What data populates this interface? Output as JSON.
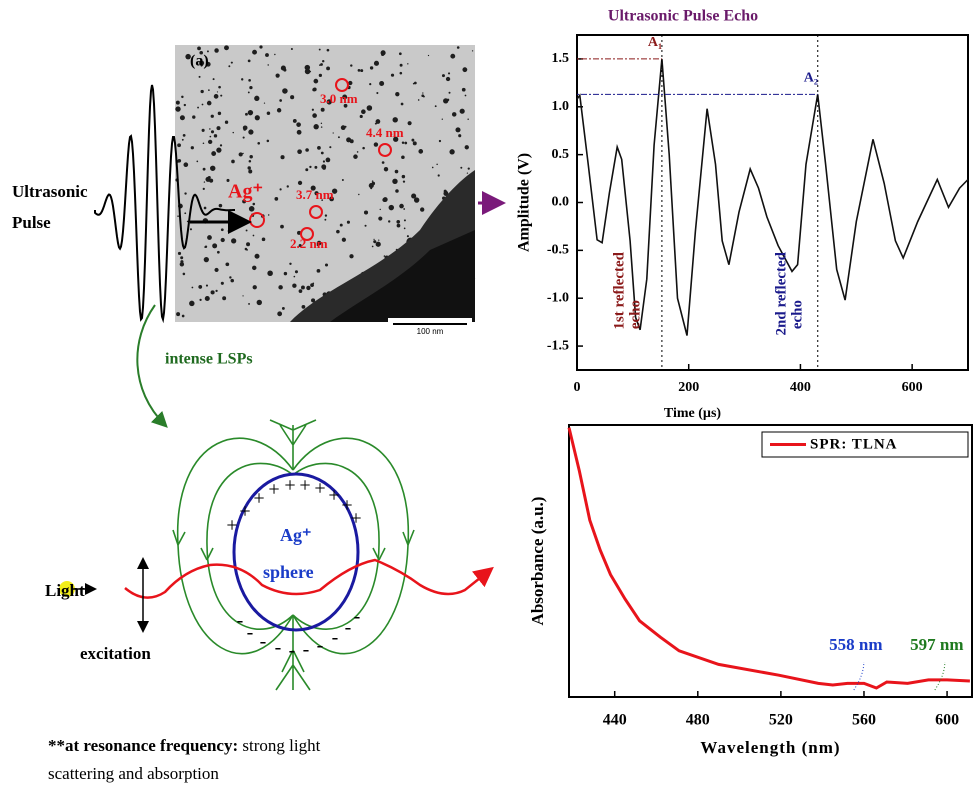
{
  "chart_data": [
    {
      "type": "line",
      "title": "Ultrasonic Pulse Echo",
      "x_label": "Time (µs)",
      "y_label": "Amplitude (V)",
      "x": [
        0,
        5,
        20,
        36,
        45,
        58,
        72,
        80,
        95,
        105,
        113,
        125,
        138,
        152,
        165,
        180,
        197,
        212,
        233,
        248,
        260,
        272,
        290,
        310,
        325,
        340,
        360,
        385,
        395,
        410,
        431,
        445,
        465,
        480,
        500,
        530,
        550,
        570,
        584,
        610,
        645,
        665,
        685,
        700
      ],
      "values": [
        1.08,
        1.12,
        0.4,
        -0.39,
        -0.42,
        0.1,
        0.58,
        0.45,
        -0.4,
        -1.2,
        -1.33,
        -0.8,
        0.6,
        1.5,
        0.5,
        -1.0,
        -1.39,
        -0.3,
        0.98,
        0.4,
        -0.4,
        -0.65,
        -0.1,
        0.35,
        0.15,
        -0.15,
        -0.45,
        -0.72,
        -0.65,
        0.4,
        1.13,
        0.4,
        -0.7,
        -1.02,
        -0.2,
        0.66,
        0.2,
        -0.4,
        -0.58,
        -0.2,
        0.24,
        -0.05,
        0.15,
        0.24
      ],
      "color": "#111111",
      "xlim": [
        0,
        700
      ],
      "ylim": [
        -1.75,
        1.75
      ],
      "xticks": [
        0,
        200,
        400,
        600
      ],
      "yticks": [
        1.5,
        {
          "value": 1,
          "label": "1.0"
        },
        0.5,
        {
          "value": 0,
          "label": "0.0"
        },
        -0.5,
        {
          "value": -1,
          "label": "-1.0"
        },
        -1.5
      ],
      "peak_labels": [
        "A₁",
        "A₂"
      ],
      "echo_labels": [
        [
          "1st reflected",
          "echo"
        ],
        [
          "2nd reflected",
          "echo"
        ]
      ],
      "annotation_colors": [
        "#8b1a1a",
        "#1a1a8b"
      ]
    },
    {
      "type": "line",
      "x_label": "Wavelength (nm)",
      "y_label": "Absorbance (a.u.)",
      "x": [
        418,
        423,
        428,
        433,
        438,
        445,
        452,
        462,
        471,
        490,
        519,
        538,
        545,
        552,
        560,
        566,
        571,
        581,
        591,
        600,
        611
      ],
      "series": [
        {
          "name": "SPR: TLNA",
          "color": "#e8141b",
          "values": [
            0.99,
            0.83,
            0.65,
            0.54,
            0.45,
            0.36,
            0.28,
            0.22,
            0.17,
            0.12,
            0.08,
            0.05,
            0.044,
            0.05,
            0.05,
            0.033,
            0.055,
            0.05,
            0.063,
            0.063,
            0.059
          ]
        }
      ],
      "xlim": [
        418,
        612
      ],
      "ylim": [
        0,
        1
      ],
      "xticks": [
        440,
        480,
        520,
        560,
        600
      ],
      "legend": "upper right",
      "peaks": [
        558,
        597
      ],
      "peak_labels": [
        "558 nm",
        "597 nm"
      ],
      "peak_colors": [
        "#1a3cc8",
        "#1f7a1f"
      ]
    }
  ],
  "diagram": {
    "pulse_label": [
      "Ultrasonic",
      "Pulse"
    ],
    "image_label": "(a)",
    "particle_sizes": [
      "3.0 nm",
      "4.4 nm",
      "3.7 nm",
      "2.2 nm"
    ],
    "ion_label": "Ag⁺",
    "scale_bar": "100 nm",
    "arrow_label": "intense LSPs",
    "sphere_label": [
      "Ag⁺",
      "sphere"
    ],
    "charges": [
      "+",
      "-"
    ],
    "light_label": "Light",
    "excitation_label": "excitation",
    "caption": {
      "bold": "**at resonance frequency:",
      "lines": [
        "strong light",
        "scattering and absorption"
      ]
    }
  }
}
